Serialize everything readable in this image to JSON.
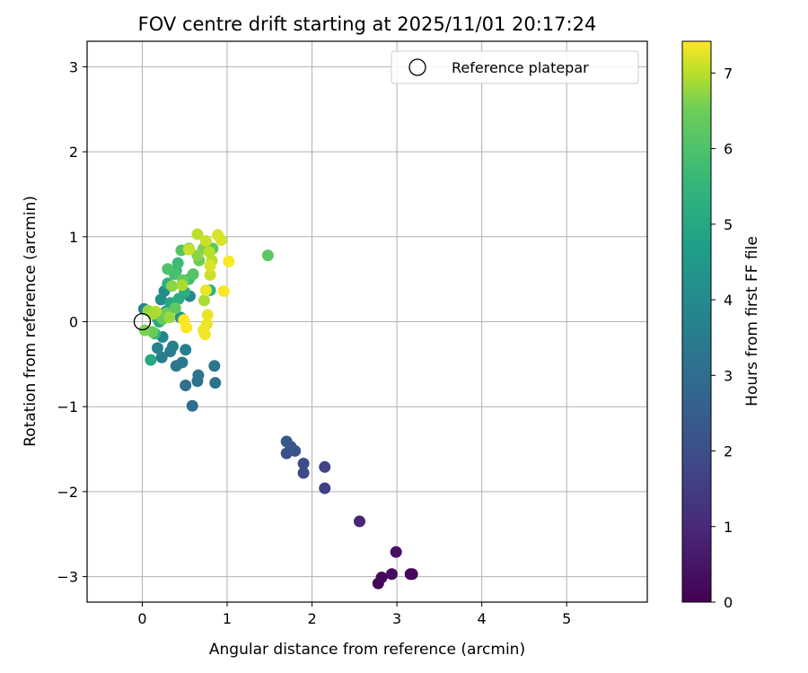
{
  "chart_data": {
    "type": "scatter",
    "title": "FOV centre drift starting at 2025/11/01 20:17:24",
    "xlabel": "Angular distance from reference (arcmin)",
    "ylabel": "Rotation from reference (arcmin)",
    "xlim": [
      -0.65,
      5.95
    ],
    "ylim": [
      -3.3,
      3.3
    ],
    "xticks": [
      0,
      1,
      2,
      3,
      4,
      5
    ],
    "yticks": [
      -3,
      -2,
      -1,
      0,
      1,
      2,
      3
    ],
    "grid": true,
    "legend": {
      "placement": "top-right",
      "entries": [
        "Reference platepar"
      ]
    },
    "reference_point": {
      "x": 0,
      "y": 0,
      "label": "Reference platepar"
    },
    "colorbar": {
      "label": "Hours from first FF file",
      "range": [
        0,
        7.42
      ],
      "ticks": [
        0,
        1,
        2,
        3,
        4,
        5,
        6,
        7
      ],
      "colormap": "viridis"
    },
    "points": [
      {
        "x": 2.78,
        "y": -3.08,
        "h": 0.05
      },
      {
        "x": 2.82,
        "y": -3.01,
        "h": 0.15
      },
      {
        "x": 2.94,
        "y": -2.97,
        "h": 0.3
      },
      {
        "x": 3.16,
        "y": -2.97,
        "h": 0.1
      },
      {
        "x": 3.18,
        "y": -2.97,
        "h": 0.2
      },
      {
        "x": 2.99,
        "y": -2.71,
        "h": 0.4
      },
      {
        "x": 2.56,
        "y": -2.35,
        "h": 0.9
      },
      {
        "x": 2.15,
        "y": -1.96,
        "h": 1.6
      },
      {
        "x": 2.15,
        "y": -1.71,
        "h": 1.7
      },
      {
        "x": 1.9,
        "y": -1.78,
        "h": 1.8
      },
      {
        "x": 1.9,
        "y": -1.67,
        "h": 1.9
      },
      {
        "x": 1.7,
        "y": -1.55,
        "h": 2.0
      },
      {
        "x": 1.8,
        "y": -1.52,
        "h": 2.1
      },
      {
        "x": 1.75,
        "y": -1.47,
        "h": 2.2
      },
      {
        "x": 1.7,
        "y": -1.41,
        "h": 2.3
      },
      {
        "x": 0.59,
        "y": -0.99,
        "h": 3.0
      },
      {
        "x": 0.51,
        "y": -0.75,
        "h": 3.1
      },
      {
        "x": 0.65,
        "y": -0.7,
        "h": 3.2
      },
      {
        "x": 0.86,
        "y": -0.72,
        "h": 3.2
      },
      {
        "x": 0.66,
        "y": -0.63,
        "h": 3.3
      },
      {
        "x": 0.85,
        "y": -0.52,
        "h": 3.3
      },
      {
        "x": 0.4,
        "y": -0.52,
        "h": 3.4
      },
      {
        "x": 0.47,
        "y": -0.48,
        "h": 3.4
      },
      {
        "x": 0.23,
        "y": -0.42,
        "h": 3.5
      },
      {
        "x": 0.33,
        "y": -0.35,
        "h": 3.5
      },
      {
        "x": 0.36,
        "y": -0.29,
        "h": 3.6
      },
      {
        "x": 0.51,
        "y": -0.33,
        "h": 3.6
      },
      {
        "x": 0.18,
        "y": -0.31,
        "h": 3.7
      },
      {
        "x": 0.24,
        "y": -0.18,
        "h": 3.8
      },
      {
        "x": 0.02,
        "y": 0.15,
        "h": 3.7
      },
      {
        "x": 0.18,
        "y": 0.04,
        "h": 3.8
      },
      {
        "x": 0.28,
        "y": 0.12,
        "h": 3.9
      },
      {
        "x": 0.56,
        "y": 0.3,
        "h": 3.9
      },
      {
        "x": 0.26,
        "y": 0.36,
        "h": 4.0
      },
      {
        "x": 0.22,
        "y": 0.26,
        "h": 4.1
      },
      {
        "x": 0.45,
        "y": 0.05,
        "h": 4.3
      },
      {
        "x": 0.35,
        "y": 0.18,
        "h": 4.5
      },
      {
        "x": 0.1,
        "y": -0.45,
        "h": 5.0
      },
      {
        "x": 0.2,
        "y": 0.0,
        "h": 5.0
      },
      {
        "x": 0.33,
        "y": 0.22,
        "h": 5.1
      },
      {
        "x": 0.43,
        "y": 0.27,
        "h": 5.2
      },
      {
        "x": 0.5,
        "y": 0.35,
        "h": 5.2
      },
      {
        "x": 0.3,
        "y": 0.45,
        "h": 5.3
      },
      {
        "x": 0.8,
        "y": 0.37,
        "h": 5.4
      },
      {
        "x": 0.15,
        "y": -0.14,
        "h": 5.5
      },
      {
        "x": 0.4,
        "y": 0.6,
        "h": 5.6
      },
      {
        "x": 0.42,
        "y": 0.69,
        "h": 5.7
      },
      {
        "x": 0.55,
        "y": 0.5,
        "h": 5.8
      },
      {
        "x": 0.38,
        "y": 0.56,
        "h": 5.9
      },
      {
        "x": 0.3,
        "y": 0.62,
        "h": 6.0
      },
      {
        "x": 0.6,
        "y": 0.56,
        "h": 6.1
      },
      {
        "x": 0.46,
        "y": 0.84,
        "h": 6.1
      },
      {
        "x": 0.55,
        "y": 0.86,
        "h": 6.2
      },
      {
        "x": 0.83,
        "y": 0.86,
        "h": 6.2
      },
      {
        "x": 0.48,
        "y": 0.49,
        "h": 6.3
      },
      {
        "x": 0.39,
        "y": 0.16,
        "h": 6.3
      },
      {
        "x": 1.48,
        "y": 0.78,
        "h": 6.2
      },
      {
        "x": 0.12,
        "y": -0.12,
        "h": 6.4
      },
      {
        "x": 0.24,
        "y": 0.03,
        "h": 6.4
      },
      {
        "x": 0.28,
        "y": 0.1,
        "h": 6.5
      },
      {
        "x": 0.67,
        "y": 0.72,
        "h": 6.5
      },
      {
        "x": 0.72,
        "y": 0.86,
        "h": 6.6
      },
      {
        "x": 0.03,
        "y": -0.1,
        "h": 6.6
      },
      {
        "x": 0.65,
        "y": 0.78,
        "h": 6.7
      },
      {
        "x": 0.35,
        "y": 0.42,
        "h": 6.7
      },
      {
        "x": 0.32,
        "y": 0.05,
        "h": 6.8
      },
      {
        "x": 0.07,
        "y": 0.13,
        "h": 6.8
      },
      {
        "x": 0.73,
        "y": 0.25,
        "h": 6.9
      },
      {
        "x": 0.47,
        "y": 0.43,
        "h": 6.9
      },
      {
        "x": 0.65,
        "y": 1.03,
        "h": 7.0
      },
      {
        "x": 0.79,
        "y": 0.82,
        "h": 7.0
      },
      {
        "x": 0.82,
        "y": 0.72,
        "h": 7.0
      },
      {
        "x": 0.8,
        "y": 0.55,
        "h": 7.1
      },
      {
        "x": 0.55,
        "y": 0.85,
        "h": 7.1
      },
      {
        "x": 0.75,
        "y": 0.95,
        "h": 7.1
      },
      {
        "x": 0.89,
        "y": 1.02,
        "h": 7.2
      },
      {
        "x": 0.93,
        "y": 0.96,
        "h": 7.2
      },
      {
        "x": 0.8,
        "y": 0.66,
        "h": 7.2
      },
      {
        "x": 0.75,
        "y": 0.37,
        "h": 7.3
      },
      {
        "x": 0.77,
        "y": 0.08,
        "h": 7.3
      },
      {
        "x": 0.76,
        "y": -0.03,
        "h": 7.3
      },
      {
        "x": 0.72,
        "y": -0.1,
        "h": 7.35
      },
      {
        "x": 0.74,
        "y": -0.15,
        "h": 7.35
      },
      {
        "x": 0.96,
        "y": 0.36,
        "h": 7.4
      },
      {
        "x": 1.02,
        "y": 0.71,
        "h": 7.4
      },
      {
        "x": 0.52,
        "y": -0.07,
        "h": 7.4
      },
      {
        "x": 0.49,
        "y": 0.02,
        "h": 7.42
      },
      {
        "x": 0.16,
        "y": 0.12,
        "h": 7.0
      },
      {
        "x": 0.13,
        "y": 0.09,
        "h": 6.9
      }
    ]
  }
}
